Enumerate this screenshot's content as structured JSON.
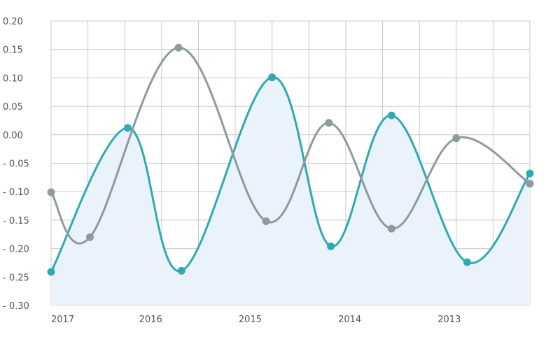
{
  "chart_data": {
    "type": "line",
    "title": "",
    "xlabel": "",
    "ylabel": "",
    "ylim": [
      -0.3,
      0.2
    ],
    "yticks": [
      "0.20",
      "0.15",
      "0.10",
      "0.05",
      "0.00",
      "- 0.05",
      "- 0.10",
      "- 0.15",
      "- 0.20",
      "- 0.25",
      "- 0.30"
    ],
    "ytick_values": [
      0.2,
      0.15,
      0.1,
      0.05,
      0.0,
      -0.05,
      -0.1,
      -0.15,
      -0.2,
      -0.25,
      -0.3
    ],
    "x_tick_labels": [
      "2017",
      "2016",
      "2015",
      "2014",
      "2013"
    ],
    "grid": true,
    "series": [
      {
        "color": "#2fa9b4",
        "fill": "#eaf3fb",
        "points": [
          {
            "x": 2017.0,
            "y": -0.241
          },
          {
            "x": 2016.23,
            "y": 0.012
          },
          {
            "x": 2015.69,
            "y": -0.239
          },
          {
            "x": 2014.78,
            "y": 0.101
          },
          {
            "x": 2014.19,
            "y": -0.196
          },
          {
            "x": 2013.58,
            "y": 0.034
          },
          {
            "x": 2012.82,
            "y": -0.224
          },
          {
            "x": 2012.19,
            "y": -0.068
          }
        ]
      },
      {
        "color": "#8f9a9b",
        "fill": null,
        "points": [
          {
            "x": 2017.0,
            "y": -0.101
          },
          {
            "x": 2016.61,
            "y": -0.18
          },
          {
            "x": 2015.72,
            "y": 0.153
          },
          {
            "x": 2014.84,
            "y": -0.152
          },
          {
            "x": 2014.21,
            "y": 0.021
          },
          {
            "x": 2013.58,
            "y": -0.165
          },
          {
            "x": 2012.93,
            "y": -0.006
          },
          {
            "x": 2012.19,
            "y": -0.086
          }
        ]
      }
    ]
  }
}
